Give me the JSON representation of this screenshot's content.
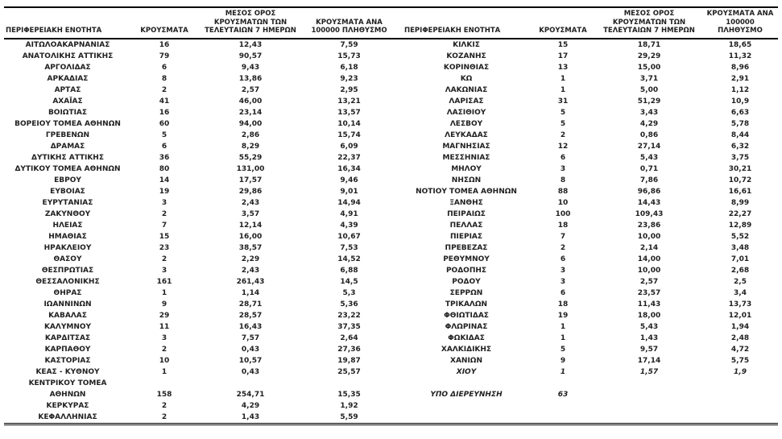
{
  "colors": {
    "background": "#ffffff",
    "text": "#212121",
    "border": "#000000"
  },
  "table": {
    "headers": [
      "ΠΕΡΙΦΕΡΕΙΑΚΗ ΕΝΟΤΗΤΑ",
      "ΚΡΟΥΣΜΑΤΑ",
      "ΜΕΣΟΣ ΟΡΟΣ\nΚΡΟΥΣΜΑΤΩΝ ΤΩΝ\nΤΕΛΕΥΤΑΙΩΝ 7 ΗΜΕΡΩΝ",
      "ΚΡΟΥΣΜΑΤΑ ΑΝΑ\n100000 ΠΛΗΘΥΣΜΟ"
    ],
    "left_rows": [
      [
        "ΑΙΤΩΛΟΑΚΑΡΝΑΝΙΑΣ",
        "16",
        "12,43",
        "7,59"
      ],
      [
        "ΑΝΑΤΟΛΙΚΗΣ ΑΤΤΙΚΗΣ",
        "79",
        "90,57",
        "15,73"
      ],
      [
        "ΑΡΓΟΛΙΔΑΣ",
        "6",
        "9,43",
        "6,18"
      ],
      [
        "ΑΡΚΑΔΙΑΣ",
        "8",
        "13,86",
        "9,23"
      ],
      [
        "ΑΡΤΑΣ",
        "2",
        "2,57",
        "2,95"
      ],
      [
        "ΑΧΑΪΑΣ",
        "41",
        "46,00",
        "13,21"
      ],
      [
        "ΒΟΙΩΤΙΑΣ",
        "16",
        "23,14",
        "13,57"
      ],
      [
        "ΒΟΡΕΙΟΥ ΤΟΜΕΑ ΑΘΗΝΩΝ",
        "60",
        "94,00",
        "10,14"
      ],
      [
        "ΓΡΕΒΕΝΩΝ",
        "5",
        "2,86",
        "15,74"
      ],
      [
        "ΔΡΑΜΑΣ",
        "6",
        "8,29",
        "6,09"
      ],
      [
        "ΔΥΤΙΚΗΣ ΑΤΤΙΚΗΣ",
        "36",
        "55,29",
        "22,37"
      ],
      [
        "ΔΥΤΙΚΟΥ ΤΟΜΕΑ ΑΘΗΝΩΝ",
        "80",
        "131,00",
        "16,34"
      ],
      [
        "ΕΒΡΟΥ",
        "14",
        "17,57",
        "9,46"
      ],
      [
        "ΕΥΒΟΙΑΣ",
        "19",
        "29,86",
        "9,01"
      ],
      [
        "ΕΥΡΥΤΑΝΙΑΣ",
        "3",
        "2,43",
        "14,94"
      ],
      [
        "ΖΑΚΥΝΘΟΥ",
        "2",
        "3,57",
        "4,91"
      ],
      [
        "ΗΛΕΙΑΣ",
        "7",
        "12,14",
        "4,39"
      ],
      [
        "ΗΜΑΘΙΑΣ",
        "15",
        "16,00",
        "10,67"
      ],
      [
        "ΗΡΑΚΛΕΙΟΥ",
        "23",
        "38,57",
        "7,53"
      ],
      [
        "ΘΑΣΟΥ",
        "2",
        "2,29",
        "14,52"
      ],
      [
        "ΘΕΣΠΡΩΤΙΑΣ",
        "3",
        "2,43",
        "6,88"
      ],
      [
        "ΘΕΣΣΑΛΟΝΙΚΗΣ",
        "161",
        "261,43",
        "14,5"
      ],
      [
        "ΘΗΡΑΣ",
        "1",
        "1,14",
        "5,3"
      ],
      [
        "ΙΩΑΝΝΙΝΩΝ",
        "9",
        "28,71",
        "5,36"
      ],
      [
        "ΚΑΒΑΛΑΣ",
        "29",
        "28,57",
        "23,22"
      ],
      [
        "ΚΑΛΥΜΝΟΥ",
        "11",
        "16,43",
        "37,35"
      ],
      [
        "ΚΑΡΔΙΤΣΑΣ",
        "3",
        "7,57",
        "2,64"
      ],
      [
        "ΚΑΡΠΑΘΟΥ",
        "2",
        "0,43",
        "27,36"
      ],
      [
        "ΚΑΣΤΟΡΙΑΣ",
        "10",
        "10,57",
        "19,87"
      ],
      [
        "ΚΕΑΣ - ΚΥΘΝΟΥ",
        "1",
        "0,43",
        "25,57"
      ],
      [
        "ΚΕΝΤΡΙΚΟΥ ΤΟΜΕΑ",
        "",
        "",
        ""
      ],
      [
        "ΑΘΗΝΩΝ",
        "158",
        "254,71",
        "15,35"
      ],
      [
        "ΚΕΡΚΥΡΑΣ",
        "2",
        "4,29",
        "1,92"
      ],
      [
        "ΚΕΦΑΛΛΗΝΙΑΣ",
        "2",
        "1,43",
        "5,59"
      ]
    ],
    "right_rows": [
      [
        "ΚΙΛΚΙΣ",
        "15",
        "18,71",
        "18,65"
      ],
      [
        "ΚΟΖΑΝΗΣ",
        "17",
        "29,29",
        "11,32"
      ],
      [
        "ΚΟΡΙΝΘΙΑΣ",
        "13",
        "15,00",
        "8,96"
      ],
      [
        "ΚΩ",
        "1",
        "3,71",
        "2,91"
      ],
      [
        "ΛΑΚΩΝΙΑΣ",
        "1",
        "5,00",
        "1,12"
      ],
      [
        "ΛΑΡΙΣΑΣ",
        "31",
        "51,29",
        "10,9"
      ],
      [
        "ΛΑΣΙΘΙΟΥ",
        "5",
        "3,43",
        "6,63"
      ],
      [
        "ΛΕΣΒΟΥ",
        "5",
        "4,29",
        "5,78"
      ],
      [
        "ΛΕΥΚΑΔΑΣ",
        "2",
        "0,86",
        "8,44"
      ],
      [
        "ΜΑΓΝΗΣΙΑΣ",
        "12",
        "27,14",
        "6,32"
      ],
      [
        "ΜΕΣΣΗΝΙΑΣ",
        "6",
        "5,43",
        "3,75"
      ],
      [
        "ΜΗΛΟΥ",
        "3",
        "0,71",
        "30,21"
      ],
      [
        "ΝΗΣΩΝ",
        "8",
        "7,86",
        "10,72"
      ],
      [
        "ΝΟΤΙΟΥ ΤΟΜΕΑ ΑΘΗΝΩΝ",
        "88",
        "96,86",
        "16,61"
      ],
      [
        "ΞΑΝΘΗΣ",
        "10",
        "14,43",
        "8,99"
      ],
      [
        "ΠΕΙΡΑΙΩΣ",
        "100",
        "109,43",
        "22,27"
      ],
      [
        "ΠΕΛΛΑΣ",
        "18",
        "23,86",
        "12,89"
      ],
      [
        "ΠΙΕΡΙΑΣ",
        "7",
        "10,00",
        "5,52"
      ],
      [
        "ΠΡΕΒΕΖΑΣ",
        "2",
        "2,14",
        "3,48"
      ],
      [
        "ΡΕΘΥΜΝΟΥ",
        "6",
        "14,00",
        "7,01"
      ],
      [
        "ΡΟΔΟΠΗΣ",
        "3",
        "10,00",
        "2,68"
      ],
      [
        "ΡΟΔΟΥ",
        "3",
        "2,57",
        "2,5"
      ],
      [
        "ΣΕΡΡΩΝ",
        "6",
        "23,57",
        "3,4"
      ],
      [
        "ΤΡΙΚΑΛΩΝ",
        "18",
        "11,43",
        "13,73"
      ],
      [
        "ΦΘΙΩΤΙΔΑΣ",
        "19",
        "18,00",
        "12,01"
      ],
      [
        "ΦΛΩΡΙΝΑΣ",
        "1",
        "5,43",
        "1,94"
      ],
      [
        "ΦΩΚΙΔΑΣ",
        "1",
        "1,43",
        "2,48"
      ],
      [
        "ΧΑΛΚΙΔΙΚΗΣ",
        "5",
        "9,57",
        "4,72"
      ],
      [
        "ΧΑΝΙΩΝ",
        "9",
        "17,14",
        "5,75"
      ],
      [
        "ΧΙΟΥ",
        "1",
        "1,57",
        "1,9"
      ],
      [
        "",
        "",
        "",
        ""
      ],
      [
        "ΥΠΟ ΔΙΕΡΕΥΝΗΣΗ",
        "63",
        "",
        ""
      ],
      [
        "",
        "",
        "",
        ""
      ],
      [
        "",
        "",
        "",
        ""
      ]
    ],
    "right_italic_rows": [
      29,
      31
    ]
  }
}
